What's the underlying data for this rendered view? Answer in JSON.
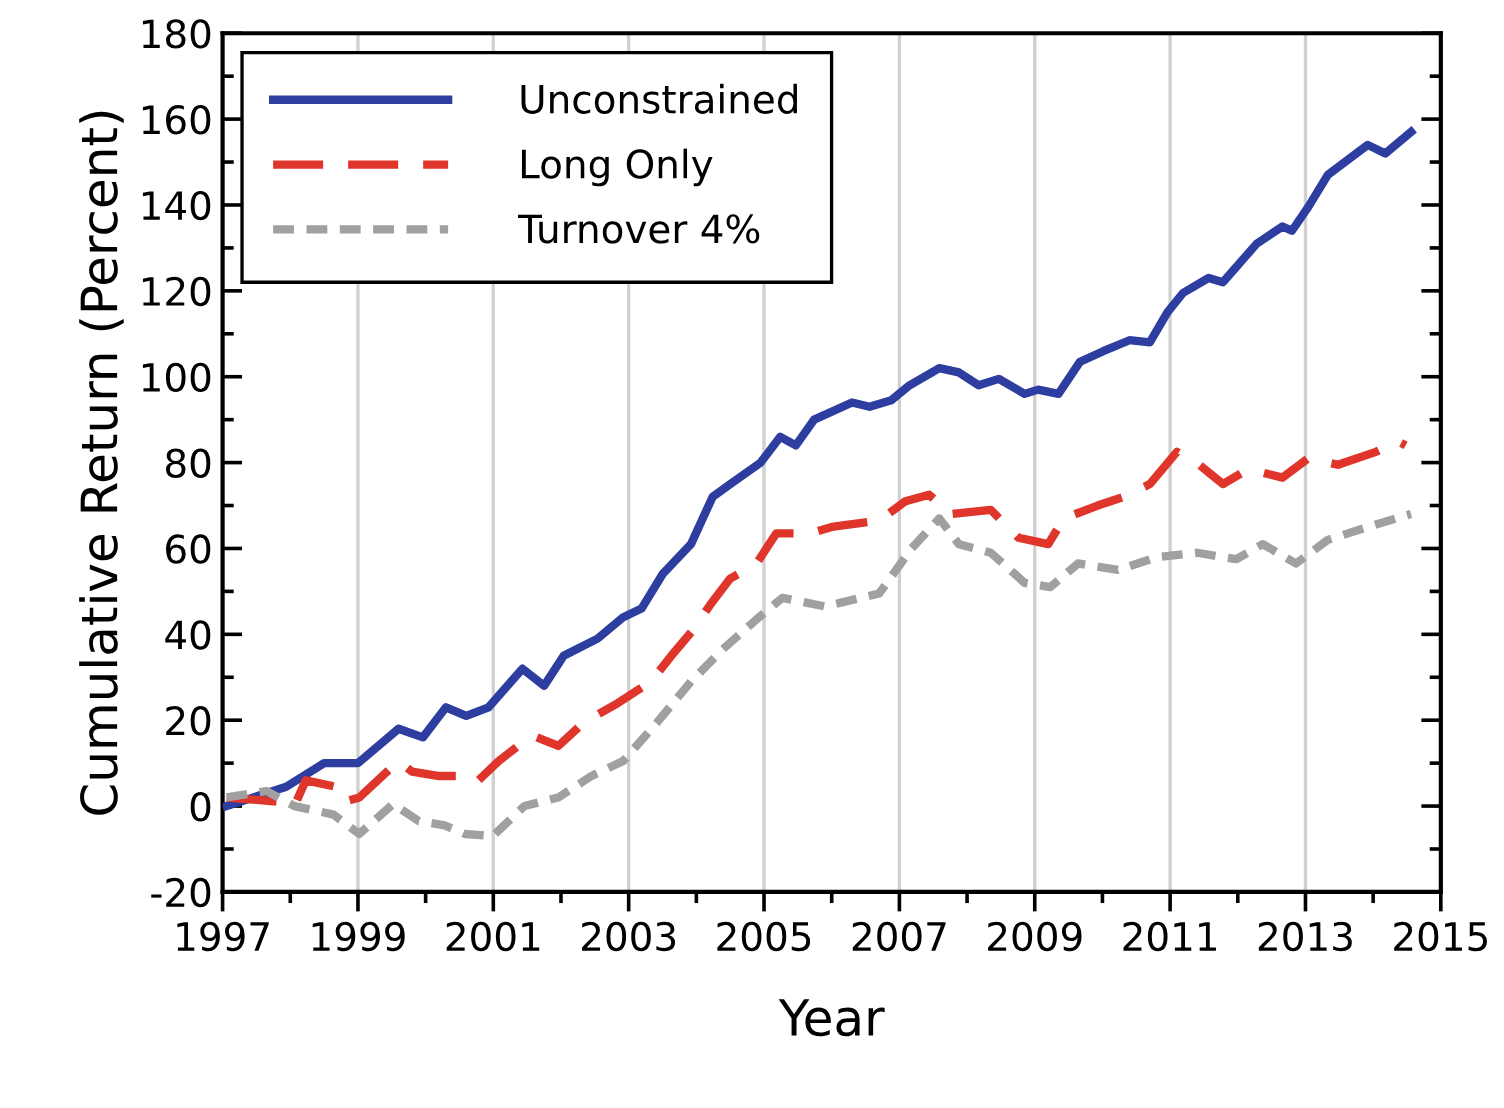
{
  "chart_data": {
    "type": "line",
    "xlabel": "Year",
    "ylabel": "Cumulative Return (Percent)",
    "xlim": [
      1997,
      2015
    ],
    "ylim": [
      -20,
      180
    ],
    "xticks": [
      1997,
      {
        "value": 1998,
        "label": null
      },
      1999,
      {
        "value": 2000,
        "label": null
      },
      2001,
      {
        "value": 2002,
        "label": null
      },
      2003,
      {
        "value": 2004,
        "label": null
      },
      2005,
      {
        "value": 2006,
        "label": null
      },
      2007,
      {
        "value": 2008,
        "label": null
      },
      2009,
      {
        "value": 2010,
        "label": null
      },
      2011,
      {
        "value": 2012,
        "label": null
      },
      2013,
      {
        "value": 2014,
        "label": null
      },
      2015
    ],
    "yticks": [
      -20,
      {
        "value": -10,
        "label": null
      },
      0,
      {
        "value": 10,
        "label": null
      },
      20,
      {
        "value": 30,
        "label": null
      },
      40,
      {
        "value": 50,
        "label": null
      },
      60,
      {
        "value": 70,
        "label": null
      },
      80,
      {
        "value": 90,
        "label": null
      },
      100,
      {
        "value": 110,
        "label": null
      },
      120,
      {
        "value": 130,
        "label": null
      },
      140,
      {
        "value": 150,
        "label": null
      },
      160,
      {
        "value": 170,
        "label": null
      },
      180
    ],
    "grid": "x",
    "legend": "top left",
    "marker": "none",
    "series": [
      {
        "name": "Unconstrained",
        "color": "#2e3ea0",
        "line_style": "solid",
        "x": [
          1997.06,
          1997.94,
          1998.5,
          1999.0,
          1999.6,
          1999.96,
          2000.3,
          2000.6,
          2000.93,
          2001.43,
          2001.75,
          2002.04,
          2002.54,
          2002.92,
          2003.19,
          2003.5,
          2003.92,
          2004.24,
          2004.5,
          2004.95,
          2005.24,
          2005.47,
          2005.74,
          2006.3,
          2006.56,
          2006.88,
          2007.15,
          2007.59,
          2007.88,
          2008.17,
          2008.47,
          2008.85,
          2009.05,
          2009.35,
          2009.67,
          2010.02,
          2010.4,
          2010.7,
          2010.96,
          2011.19,
          2011.57,
          2011.78,
          2012.28,
          2012.66,
          2012.8,
          2013.04,
          2013.33,
          2013.92,
          2014.18,
          2014.56
        ],
        "values": [
          0,
          4.5,
          10,
          10,
          18,
          16,
          23,
          21,
          23,
          32,
          28,
          35,
          39,
          44,
          46,
          54,
          61,
          72,
          75,
          80,
          86,
          84,
          90,
          94,
          93,
          94.5,
          98,
          102,
          101,
          98,
          99.5,
          96,
          97,
          96,
          103.5,
          106,
          108.5,
          108,
          115,
          119.5,
          123,
          122,
          131,
          135,
          134,
          139.5,
          147,
          154,
          152,
          157
        ]
      },
      {
        "name": "Long Only",
        "color": "#e0352a",
        "line_style": "dashed",
        "x": [
          1997.06,
          1997.85,
          1998.06,
          1998.23,
          1998.67,
          1998.8,
          1999.02,
          1999.6,
          1999.8,
          2000.2,
          2000.72,
          2000.78,
          2001.08,
          2001.57,
          2001.96,
          2002.34,
          2002.84,
          2003.33,
          2003.63,
          2003.95,
          2004.21,
          2004.5,
          2004.89,
          2005.18,
          2005.68,
          2006.0,
          2006.7,
          2007.09,
          2007.44,
          2007.76,
          2008.35,
          2008.76,
          2009.2,
          2009.43,
          2009.93,
          2010.31,
          2010.7,
          2011.1,
          2011.43,
          2011.78,
          2012.16,
          2012.66,
          2013.04,
          2013.48,
          2014.04,
          2014.36,
          2014.48
        ],
        "values": [
          2,
          1,
          0,
          6,
          4.5,
          1,
          2,
          10.5,
          8,
          7,
          7,
          6,
          10.5,
          16.5,
          14,
          19.5,
          24,
          29,
          35,
          41,
          47,
          53,
          56.5,
          63.5,
          63.5,
          65,
          66.5,
          71,
          72.5,
          68,
          69,
          62.5,
          61,
          67,
          70,
          72,
          75,
          82.5,
          79.5,
          75,
          78.5,
          76.5,
          81,
          79.5,
          82.5,
          85,
          84
        ]
      },
      {
        "name": "Turnover 4%",
        "color": "#a0a0a0",
        "line_style": "dotted",
        "x": [
          1997.06,
          1997.65,
          1998.06,
          1998.64,
          1999.02,
          1999.52,
          1999.9,
          2000.28,
          2000.58,
          2000.99,
          2001.46,
          2001.96,
          2002.45,
          2002.92,
          2003.42,
          2003.92,
          2004.39,
          2004.89,
          2005.27,
          2005.9,
          2006.7,
          2007.18,
          2007.59,
          2007.88,
          2008.35,
          2008.85,
          2009.23,
          2009.64,
          2010.23,
          2010.81,
          2011.4,
          2011.98,
          2012.37,
          2012.86,
          2013.33,
          2013.92,
          2014.56
        ],
        "values": [
          2,
          3.5,
          0,
          -2,
          -6.5,
          0.5,
          -3.5,
          -4.5,
          -6.5,
          -7,
          0,
          2,
          7,
          10.5,
          19.5,
          29,
          36.5,
          43.5,
          48.5,
          46.5,
          49.5,
          60,
          67,
          61,
          59,
          52,
          51,
          56.5,
          55,
          58,
          59,
          57.5,
          61,
          56.5,
          62,
          65,
          68
        ]
      }
    ]
  }
}
